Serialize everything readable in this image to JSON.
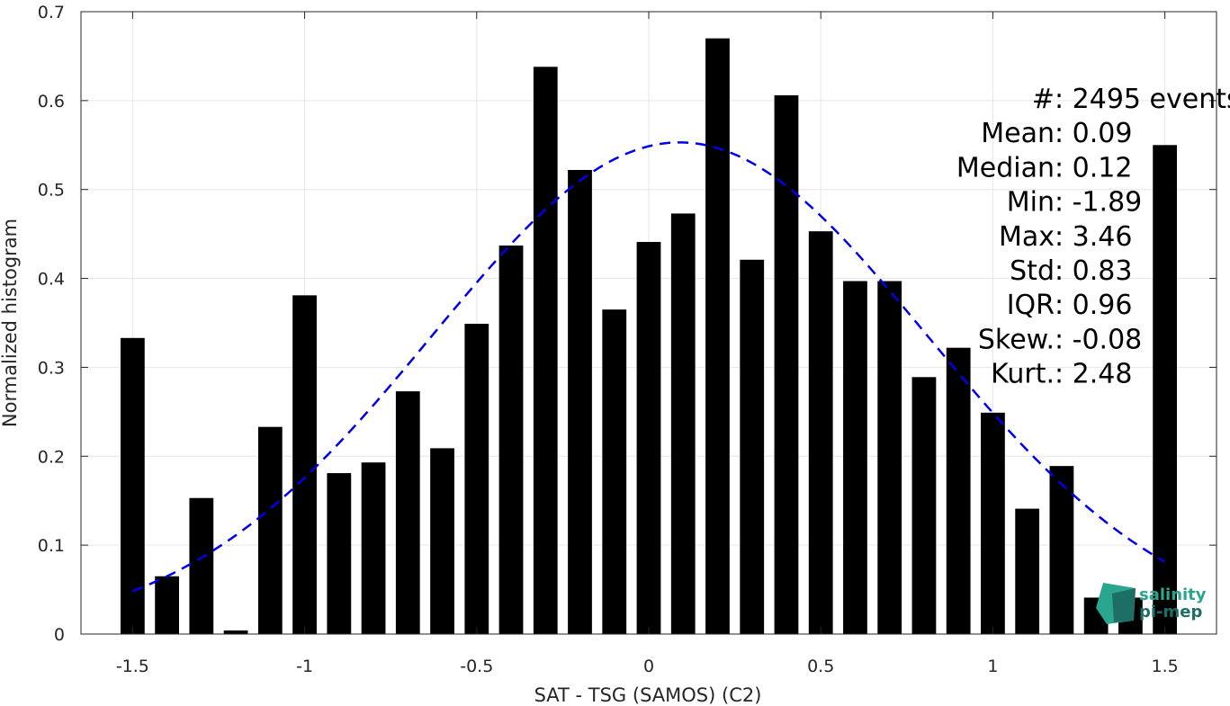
{
  "chart_data": {
    "type": "bar",
    "xlabel": "SAT - TSG (SAMOS) (C2)",
    "ylabel": "Normalized histogram",
    "xlim": [
      -1.65,
      1.65
    ],
    "ylim": [
      0,
      0.7
    ],
    "xticks": [
      "-1.5",
      "-1",
      "-0.5",
      "0",
      "0.5",
      "1",
      "1.5"
    ],
    "xtick_values": [
      -1.5,
      -1,
      -0.5,
      0,
      0.5,
      1,
      1.5
    ],
    "yticks": [
      "0",
      "0.1",
      "0.2",
      "0.3",
      "0.4",
      "0.5",
      "0.6",
      "0.7"
    ],
    "ytick_values": [
      0,
      0.1,
      0.2,
      0.3,
      0.4,
      0.5,
      0.6,
      0.7
    ],
    "grid": true,
    "bar_width": 0.07,
    "bar_color": "#000000",
    "bins": [
      -1.5,
      -1.4,
      -1.3,
      -1.2,
      -1.1,
      -1.0,
      -0.9,
      -0.8,
      -0.7,
      -0.6,
      -0.5,
      -0.4,
      -0.3,
      -0.2,
      -0.1,
      0.0,
      0.1,
      0.2,
      0.3,
      0.4,
      0.5,
      0.6,
      0.7,
      0.8,
      0.9,
      1.0,
      1.1,
      1.2,
      1.3,
      1.4,
      1.5
    ],
    "values": [
      0.333,
      0.065,
      0.153,
      0.004,
      0.233,
      0.381,
      0.181,
      0.193,
      0.273,
      0.209,
      0.349,
      0.437,
      0.638,
      0.522,
      0.365,
      0.441,
      0.473,
      0.67,
      0.421,
      0.606,
      0.453,
      0.397,
      0.397,
      0.289,
      0.322,
      0.249,
      0.141,
      0.189,
      0.041,
      0.041,
      0.55
    ],
    "fit_curve": {
      "style": "dashed",
      "color": "#0000ee",
      "mean": 0.09,
      "std": 0.72,
      "peak": 0.553,
      "xrange": [
        -1.5,
        1.5
      ]
    },
    "annotations": [
      {
        "label": "#  ",
        "value": ": 2495 events"
      },
      {
        "label": "Mean ",
        "value": ": 0.09"
      },
      {
        "label": "Median ",
        "value": ": 0.12"
      },
      {
        "label": "Min ",
        "value": ": -1.89"
      },
      {
        "label": "Max ",
        "value": ": 3.46"
      },
      {
        "label": "Std ",
        "value": ": 0.83"
      },
      {
        "label": "IQR ",
        "value": ": 0.96"
      },
      {
        "label": "Skew. ",
        "value": ": -0.08"
      },
      {
        "label": "Kurt. ",
        "value": ": 2.48"
      }
    ]
  },
  "logo": {
    "line1": "salinity",
    "line2": "pi-mep",
    "color": "#2aa58f",
    "dark_color": "#1d6f66"
  }
}
